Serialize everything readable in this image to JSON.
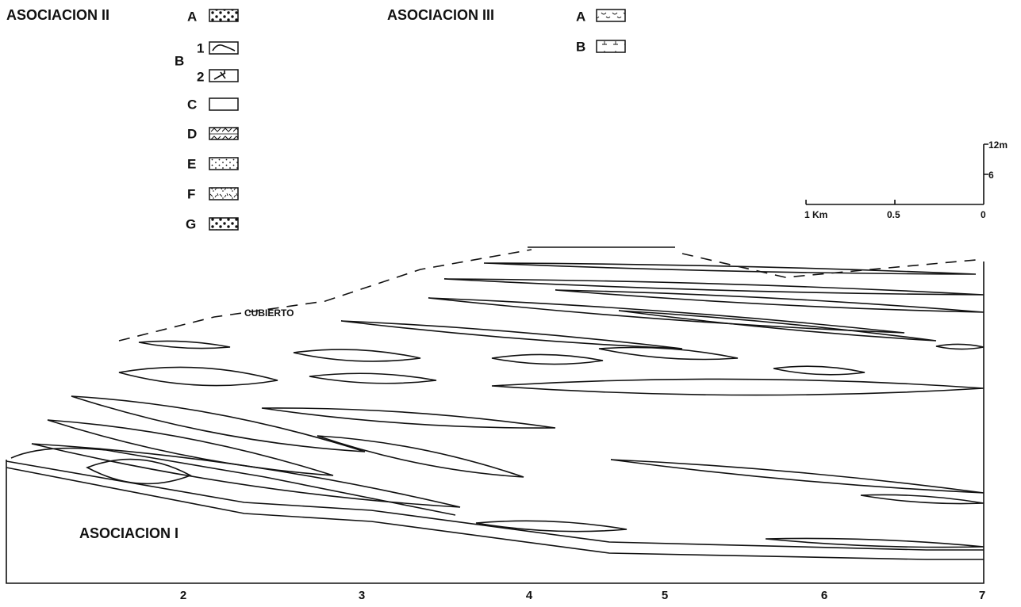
{
  "legend_ii": {
    "title": "ASOCIACION II",
    "items": [
      {
        "label": "A"
      },
      {
        "label": "B",
        "sub": [
          {
            "label": "1"
          },
          {
            "label": "2"
          }
        ]
      },
      {
        "label": "C"
      },
      {
        "label": "D"
      },
      {
        "label": "E"
      },
      {
        "label": "F"
      },
      {
        "label": "G"
      }
    ]
  },
  "legend_iii": {
    "title": "ASOCIACION III",
    "items": [
      {
        "label": "A"
      },
      {
        "label": "B"
      }
    ]
  },
  "scale": {
    "vertical": [
      "12m",
      "6"
    ],
    "horizontal": [
      "1 Km",
      "0.5",
      "0"
    ]
  },
  "section": {
    "labels": [
      "CUBIERTO",
      "ASOCIACION I"
    ],
    "x_axis": [
      "2",
      "3",
      "4",
      "5",
      "6",
      "7"
    ]
  }
}
